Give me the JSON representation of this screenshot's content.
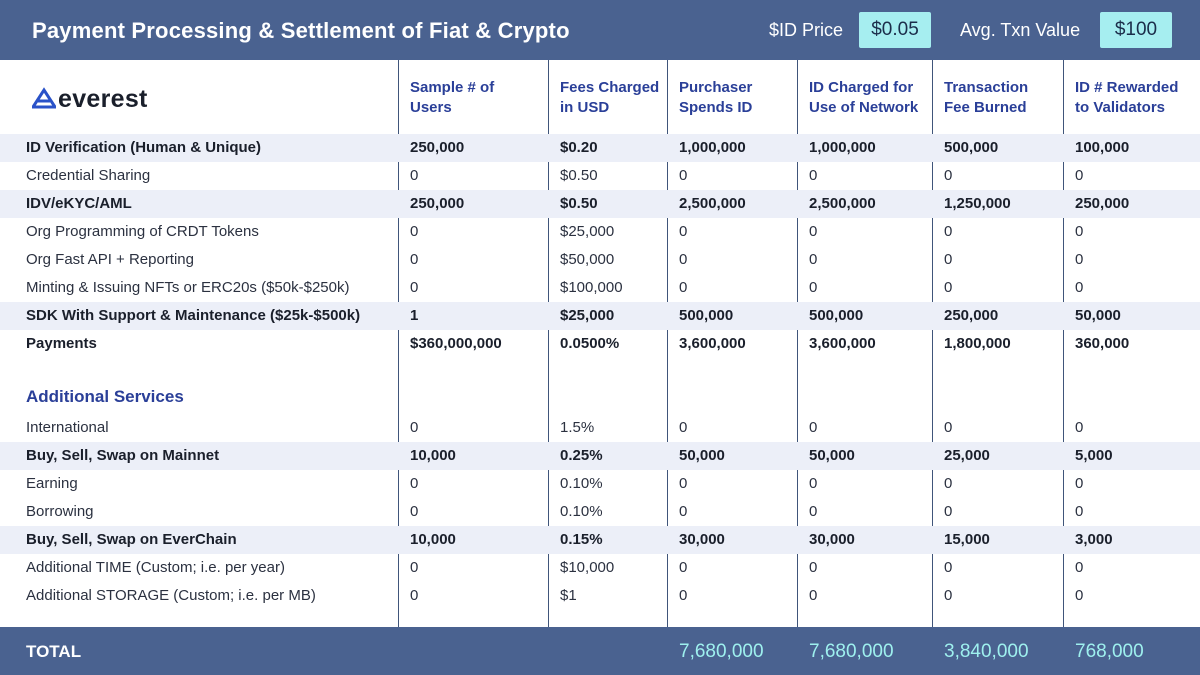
{
  "header": {
    "title": "Payment Processing & Settlement of Fiat & Crypto",
    "id_price_label": "$ID Price",
    "id_price_value": "$0.05",
    "avg_txn_label": "Avg. Txn Value",
    "avg_txn_value": "$100"
  },
  "logo": {
    "text": "everest"
  },
  "columns": [
    "Sample # of Users",
    "Fees Charged in USD",
    "Purchaser Spends ID",
    "ID Charged for Use of Network",
    "Transaction Fee Burned",
    "ID # Rewarded to Validators"
  ],
  "rows": [
    {
      "label": "ID Verification (Human & Unique)",
      "values": [
        "250,000",
        "$0.20",
        "1,000,000",
        "1,000,000",
        "500,000",
        "100,000"
      ]
    },
    {
      "label": "Credential Sharing",
      "values": [
        "0",
        "$0.50",
        "0",
        "0",
        "0",
        "0"
      ]
    },
    {
      "label": "IDV/eKYC/AML",
      "values": [
        "250,000",
        "$0.50",
        "2,500,000",
        "2,500,000",
        "1,250,000",
        "250,000"
      ]
    },
    {
      "label": "Org Programming of CRDT Tokens",
      "values": [
        "0",
        "$25,000",
        "0",
        "0",
        "0",
        "0"
      ]
    },
    {
      "label": "Org Fast API + Reporting",
      "values": [
        "0",
        "$50,000",
        "0",
        "0",
        "0",
        "0"
      ]
    },
    {
      "label": "Minting & Issuing NFTs or ERC20s ($50k-$250k)",
      "values": [
        "0",
        "$100,000",
        "0",
        "0",
        "0",
        "0"
      ]
    },
    {
      "label": "SDK With Support & Maintenance ($25k-$500k)",
      "values": [
        "1",
        "$25,000",
        "500,000",
        "500,000",
        "250,000",
        "50,000"
      ]
    },
    {
      "label": "Payments",
      "values": [
        "$360,000,000",
        "0.0500%",
        "3,600,000",
        "3,600,000",
        "1,800,000",
        "360,000"
      ]
    }
  ],
  "additional": {
    "title": "Additional Services",
    "rows": [
      {
        "label": "International",
        "values": [
          "0",
          "1.5%",
          "0",
          "0",
          "0",
          "0"
        ]
      },
      {
        "label": "Buy, Sell, Swap on Mainnet",
        "values": [
          "10,000",
          "0.25%",
          "50,000",
          "50,000",
          "25,000",
          "5,000"
        ]
      },
      {
        "label": "Earning",
        "values": [
          "0",
          "0.10%",
          "0",
          "0",
          "0",
          "0"
        ]
      },
      {
        "label": "Borrowing",
        "values": [
          "0",
          "0.10%",
          "0",
          "0",
          "0",
          "0"
        ]
      },
      {
        "label": "Buy, Sell, Swap on EverChain",
        "values": [
          "10,000",
          "0.15%",
          "30,000",
          "30,000",
          "15,000",
          "3,000"
        ]
      },
      {
        "label": "Additional TIME (Custom; i.e. per year)",
        "values": [
          "0",
          "$10,000",
          "0",
          "0",
          "0",
          "0"
        ]
      },
      {
        "label": "Additional STORAGE (Custom; i.e. per MB)",
        "values": [
          "0",
          "$1",
          "0",
          "0",
          "0",
          "0"
        ]
      }
    ]
  },
  "total": {
    "label": "TOTAL",
    "values": [
      "7,680,000",
      "7,680,000",
      "3,840,000",
      "768,000"
    ]
  },
  "colors": {
    "bar": "#4a6290",
    "pill": "#a6eef0",
    "accent": "#2a3f98",
    "shade": "#eceff8",
    "total_text": "#9ef0ee"
  }
}
